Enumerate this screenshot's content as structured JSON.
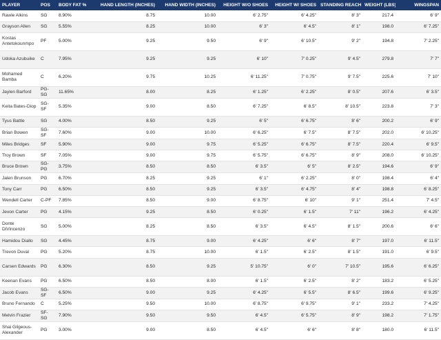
{
  "columns": [
    "PLAYER",
    "POS",
    "BODY FAT %",
    "HAND LENGTH (INCHES)",
    "HAND WIDTH (INCHES)",
    "HEIGHT W/O SHOES",
    "HEIGHT W/ SHOES",
    "STANDING REACH",
    "WEIGHT (LBS)",
    "WINGSPAN"
  ],
  "rows": [
    [
      "Rawle Alkins",
      "SG",
      "8.90%",
      "8.75",
      "10.00",
      "6' 2.75\"",
      "6' 4.25\"",
      "8' 3\"",
      "217.4",
      "6' 9\""
    ],
    [
      "Grayson Allen",
      "SG",
      "5.55%",
      "8.25",
      "10.00",
      "6' 3\"",
      "6' 4.5\"",
      "8' 1\"",
      "198.0",
      "6' 7.25\""
    ],
    [
      "Kostas Antetokounmpo",
      "PF",
      "5.00%",
      "9.25",
      "9.50",
      "6' 9\"",
      "6' 10.5\"",
      "9' 2\"",
      "194.8",
      "7' 2.25\""
    ],
    [
      "Udoka Azubuike",
      "C",
      "7.95%",
      "9.25",
      "9.25",
      "6' 10\"",
      "7' 0.25\"",
      "9' 4.5\"",
      "279.8",
      "7' 7\""
    ],
    [
      "Mohamed Bamba",
      "C",
      "6.20%",
      "9.75",
      "10.25",
      "6' 11.25\"",
      "7' 0.75\"",
      "9' 7.5\"",
      "225.6",
      "7' 10\""
    ],
    [
      "Jaylen Barford",
      "PG-SG",
      "11.65%",
      "8.00",
      "8.25",
      "6' 1.25\"",
      "6' 2.25\"",
      "8' 0.5\"",
      "207.6",
      "6' 3.5\""
    ],
    [
      "Keita Bates-Diop",
      "SG-SF",
      "5.35%",
      "9.00",
      "8.50",
      "6' 7.25\"",
      "6' 8.5\"",
      "8' 10.5\"",
      "223.8",
      "7' 3\""
    ],
    [
      "Tyus Battle",
      "SG",
      "4.00%",
      "8.50",
      "9.25",
      "6' 5\"",
      "6' 6.75\"",
      "8' 6\"",
      "200.2",
      "6' 9\""
    ],
    [
      "Brian Bowen",
      "SG-SF",
      "7.60%",
      "9.00",
      "10.00",
      "6' 6.25\"",
      "6' 7.5\"",
      "8' 7.5\"",
      "202.0",
      "6' 10.25\""
    ],
    [
      "Miles Bridges",
      "SF",
      "5.90%",
      "9.00",
      "9.75",
      "6' 5.25\"",
      "6' 6.75\"",
      "8' 7.5\"",
      "220.4",
      "6' 9.5\""
    ],
    [
      "Troy Brown",
      "SF",
      "7.05%",
      "9.00",
      "9.75",
      "6' 5.75\"",
      "6' 6.75\"",
      "8' 9\"",
      "208.0",
      "6' 10.25\""
    ],
    [
      "Bruce Brown",
      "SG-PG",
      "3.75%",
      "8.50",
      "8.50",
      "6' 3.5\"",
      "6' 5\"",
      "8' 2.5\"",
      "194.6",
      "6' 9\""
    ],
    [
      "Jalen Brunson",
      "PG",
      "6.70%",
      "8.25",
      "9.25",
      "6' 1\"",
      "6' 2.25\"",
      "8' 0\"",
      "198.4",
      "6' 4\""
    ],
    [
      "Tony Carr",
      "PG",
      "6.50%",
      "8.50",
      "9.25",
      "6' 3.5\"",
      "6' 4.75\"",
      "8' 4\"",
      "198.8",
      "6' 8.25\""
    ],
    [
      "Wendell Carter",
      "C-PF",
      "7.85%",
      "8.50",
      "9.00",
      "6' 8.75\"",
      "6' 10\"",
      "9' 1\"",
      "251.4",
      "7' 4.5\""
    ],
    [
      "Jevon Carter",
      "PG",
      "4.15%",
      "9.25",
      "8.50",
      "6' 0.25\"",
      "6' 1.5\"",
      "7' 11\"",
      "196.2",
      "6' 4.25\""
    ],
    [
      "Donte DiVincenzo",
      "SG",
      "5.00%",
      "8.25",
      "8.50",
      "6' 3.5\"",
      "6' 4.5\"",
      "8' 1.5\"",
      "200.6",
      "6' 6\""
    ],
    [
      "Hamidou Diallo",
      "SG",
      "4.45%",
      "8.75",
      "9.00",
      "6' 4.25\"",
      "6' 6\"",
      "8' 7\"",
      "197.0",
      "6' 11.5\""
    ],
    [
      "Trevon Duval",
      "PG",
      "5.20%",
      "8.75",
      "10.00",
      "6' 1.5\"",
      "6' 2.5\"",
      "8' 1.5\"",
      "191.0",
      "6' 9.5\""
    ],
    [
      "Carsen Edwards",
      "PG",
      "6.30%",
      "8.50",
      "9.25",
      "5' 10.75\"",
      "6' 0\"",
      "7' 10.5\"",
      "195.6",
      "6' 6.25\""
    ],
    [
      "Keenan Evans",
      "PG",
      "6.50%",
      "8.50",
      "8.00",
      "6' 1.5\"",
      "6' 2.5\"",
      "8' 2\"",
      "183.2",
      "6' 5.25\""
    ],
    [
      "Jacob Evans",
      "SG-SF",
      "6.50%",
      "9.00",
      "9.25",
      "6' 4.25\"",
      "6' 5.5\"",
      "8' 6.5\"",
      "199.6",
      "6' 9.25\""
    ],
    [
      "Bruno Fernando",
      "C",
      "5.25%",
      "9.50",
      "10.00",
      "6' 8.75\"",
      "6' 9.75\"",
      "9' 1\"",
      "233.2",
      "7' 4.25\""
    ],
    [
      "Melvin Frazier",
      "SF-SG",
      "7.90%",
      "9.50",
      "9.50",
      "6' 4.5\"",
      "6' 5.75\"",
      "8' 9\"",
      "198.2",
      "7' 1.75\""
    ],
    [
      "Shai Gilgeous-Alexander",
      "PG",
      "3.00%",
      "9.00",
      "8.50",
      "6' 4.5\"",
      "6' 6\"",
      "8' 8\"",
      "180.0",
      "6' 11.5\""
    ]
  ],
  "colors": {
    "header_bg": "#1d3a6e",
    "header_text": "#ffffff",
    "stripe": "#f2f2f2"
  }
}
